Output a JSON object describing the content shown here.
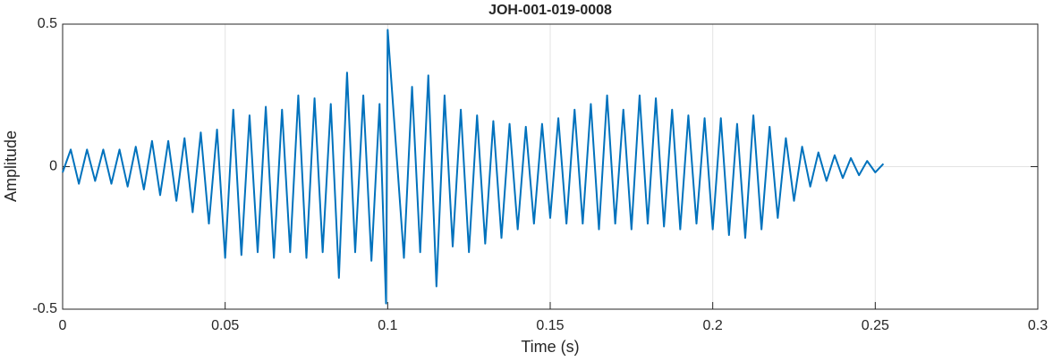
{
  "chart_data": {
    "type": "line",
    "title": "JOH-001-019-0008",
    "x_label": "Time (s)",
    "y_label": "Amplitude",
    "x": [
      0,
      0.0025,
      0.005,
      0.0075,
      0.01,
      0.0125,
      0.015,
      0.0175,
      0.02,
      0.0225,
      0.025,
      0.0275,
      0.03,
      0.0325,
      0.035,
      0.0375,
      0.04,
      0.0425,
      0.045,
      0.0475,
      0.05,
      0.0525,
      0.055,
      0.0575,
      0.06,
      0.0625,
      0.065,
      0.0675,
      0.07,
      0.0725,
      0.075,
      0.0775,
      0.08,
      0.0825,
      0.085,
      0.0875,
      0.09,
      0.0925,
      0.095,
      0.0975,
      0.0995,
      0.1,
      0.105,
      0.1075,
      0.11,
      0.1125,
      0.115,
      0.1175,
      0.12,
      0.1225,
      0.125,
      0.1275,
      0.13,
      0.1325,
      0.135,
      0.1375,
      0.14,
      0.1425,
      0.145,
      0.1475,
      0.15,
      0.1525,
      0.155,
      0.1575,
      0.16,
      0.1625,
      0.165,
      0.1675,
      0.17,
      0.1725,
      0.175,
      0.1775,
      0.18,
      0.1825,
      0.185,
      0.1875,
      0.19,
      0.1925,
      0.195,
      0.1975,
      0.2,
      0.2025,
      0.205,
      0.2075,
      0.21,
      0.2125,
      0.215,
      0.2175,
      0.22,
      0.2225,
      0.225,
      0.2275,
      0.23,
      0.2325,
      0.235,
      0.2375,
      0.24,
      0.2425,
      0.245,
      0.2475,
      0.25,
      0.2525
    ],
    "series": [
      {
        "name": "Amplitude",
        "color": "#0072BD",
        "values": [
          -0.02,
          0.06,
          -0.06,
          0.06,
          -0.05,
          0.06,
          -0.06,
          0.06,
          -0.07,
          0.07,
          -0.08,
          0.09,
          -0.1,
          0.09,
          -0.12,
          0.1,
          -0.16,
          0.12,
          -0.2,
          0.13,
          -0.32,
          0.2,
          -0.31,
          0.18,
          -0.3,
          0.21,
          -0.32,
          0.2,
          -0.3,
          0.25,
          -0.32,
          0.24,
          -0.3,
          0.22,
          -0.39,
          0.33,
          -0.3,
          0.25,
          -0.33,
          0.22,
          -0.48,
          0.48,
          -0.32,
          0.28,
          -0.3,
          0.32,
          -0.42,
          0.25,
          -0.28,
          0.2,
          -0.3,
          0.18,
          -0.27,
          0.16,
          -0.25,
          0.15,
          -0.22,
          0.14,
          -0.2,
          0.15,
          -0.18,
          0.17,
          -0.2,
          0.2,
          -0.2,
          0.22,
          -0.22,
          0.25,
          -0.2,
          0.2,
          -0.22,
          0.25,
          -0.2,
          0.24,
          -0.21,
          0.2,
          -0.22,
          0.18,
          -0.2,
          0.17,
          -0.22,
          0.17,
          -0.24,
          0.15,
          -0.25,
          0.18,
          -0.22,
          0.14,
          -0.18,
          0.1,
          -0.12,
          0.07,
          -0.07,
          0.05,
          -0.05,
          0.04,
          -0.04,
          0.03,
          -0.03,
          0.02,
          -0.02,
          0.01
        ]
      }
    ],
    "xlim": [
      0,
      0.3
    ],
    "xticks": [
      0,
      0.05,
      0.1,
      0.15,
      0.2,
      0.25,
      0.3
    ],
    "ylim": [
      -0.5,
      0.5
    ],
    "yticks": [
      -0.5,
      0,
      0.5
    ],
    "grid": true
  }
}
